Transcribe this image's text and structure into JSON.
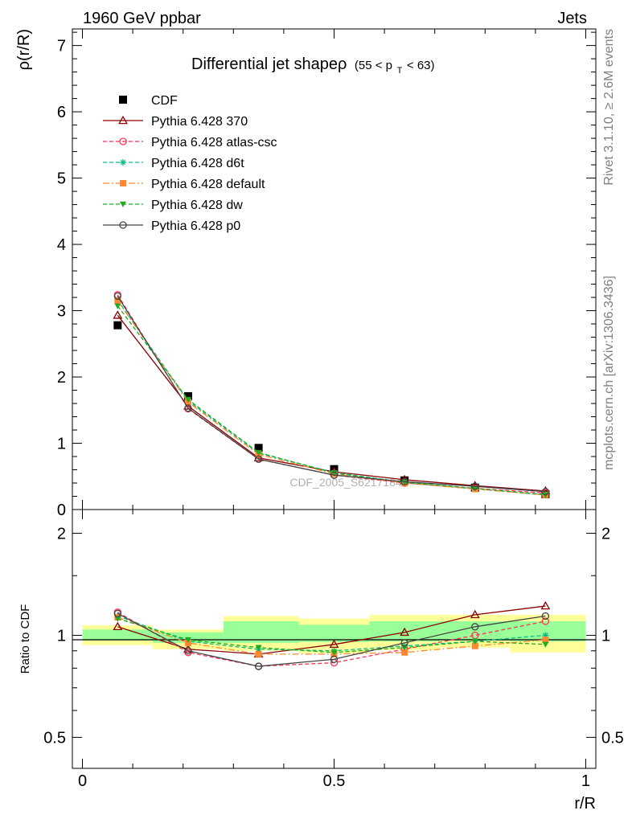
{
  "header": {
    "left": "1960 GeV ppbar",
    "right": "Jets"
  },
  "side_text": {
    "rivet": "Rivet 3.1.10, ≥ 2.6M events",
    "mcplots": "mcplots.cern.ch [arXiv:1306.3436]"
  },
  "watermark": "CDF_2005_S6217184",
  "chart_data": [
    {
      "type": "line",
      "title_main": "Differential jet shapeρ",
      "title_range": "(55 < p",
      "title_sub": "T",
      "title_tail": " < 63)",
      "ylabel": "ρ(r/R)",
      "xlabel": "r/R",
      "ylim": [
        0,
        7.25
      ],
      "xlim": [
        -0.02,
        1.02
      ],
      "yticks": [
        "0",
        "1",
        "2",
        "3",
        "4",
        "5",
        "6",
        "7"
      ],
      "x": [
        0.07,
        0.21,
        0.35,
        0.5,
        0.64,
        0.78,
        0.92
      ],
      "series": [
        {
          "name": "CDF",
          "color": "#000000",
          "style": "solid",
          "marker": "square-filled",
          "line": false,
          "values": [
            2.78,
            1.71,
            0.93,
            0.61,
            0.44,
            0.33,
            0.23
          ]
        },
        {
          "name": "Pythia 6.428 370",
          "color": "#8b0000",
          "style": "solid",
          "marker": "triangle-open",
          "values": [
            2.93,
            1.56,
            0.78,
            0.57,
            0.45,
            0.36,
            0.28
          ]
        },
        {
          "name": "Pythia 6.428 atlas-csc",
          "color": "#ff3355",
          "style": "dashed",
          "marker": "circle-open",
          "values": [
            3.24,
            1.52,
            0.76,
            0.52,
            0.4,
            0.32,
            0.25
          ]
        },
        {
          "name": "Pythia 6.428 d6t",
          "color": "#11bb88",
          "style": "dashed",
          "marker": "star",
          "values": [
            3.16,
            1.64,
            0.85,
            0.56,
            0.41,
            0.31,
            0.23
          ]
        },
        {
          "name": "Pythia 6.428 default",
          "color": "#ff8833",
          "style": "dashdot",
          "marker": "square-filled",
          "values": [
            3.15,
            1.62,
            0.83,
            0.54,
            0.4,
            0.31,
            0.22
          ]
        },
        {
          "name": "Pythia 6.428 dw",
          "color": "#22aa22",
          "style": "dashed",
          "marker": "triangle-down-filled",
          "values": [
            3.07,
            1.66,
            0.86,
            0.55,
            0.41,
            0.32,
            0.22
          ]
        },
        {
          "name": "Pythia 6.428 p0",
          "color": "#444444",
          "style": "solid",
          "marker": "circle-open",
          "values": [
            3.22,
            1.53,
            0.76,
            0.52,
            0.42,
            0.35,
            0.27
          ]
        }
      ]
    },
    {
      "type": "line",
      "ylabel": "Ratio to CDF",
      "xlabel": "r/R",
      "scale": "log",
      "ylim": [
        0.405,
        2.35
      ],
      "xlim": [
        -0.02,
        1.02
      ],
      "yticks": [
        0.5,
        1,
        2
      ],
      "ytick_labels": [
        "0.5",
        "1",
        "2"
      ],
      "xticks": [
        0,
        0.5,
        1
      ],
      "xtick_labels": [
        "0",
        "0.5",
        "1"
      ],
      "x": [
        0.07,
        0.21,
        0.35,
        0.5,
        0.64,
        0.78,
        0.92
      ],
      "bins": [
        [
          0.0,
          0.14
        ],
        [
          0.14,
          0.28
        ],
        [
          0.28,
          0.43
        ],
        [
          0.43,
          0.57
        ],
        [
          0.57,
          0.71
        ],
        [
          0.71,
          0.85
        ],
        [
          0.85,
          1.0
        ]
      ],
      "band_yellow": [
        [
          0.935,
          1.07
        ],
        [
          0.91,
          1.04
        ],
        [
          0.9,
          1.14
        ],
        [
          0.885,
          1.12
        ],
        [
          0.905,
          1.15
        ],
        [
          0.92,
          1.15
        ],
        [
          0.89,
          1.15
        ]
      ],
      "band_green": [
        [
          0.965,
          1.04
        ],
        [
          0.95,
          1.02
        ],
        [
          0.95,
          1.1
        ],
        [
          0.955,
          1.075
        ],
        [
          0.96,
          1.1
        ],
        [
          0.965,
          1.1
        ],
        [
          0.96,
          1.1
        ]
      ],
      "series": [
        {
          "name": "Pythia 6.428 370",
          "color": "#8b0000",
          "style": "solid",
          "marker": "triangle-open",
          "values": [
            1.06,
            0.91,
            0.88,
            0.94,
            1.02,
            1.15,
            1.22
          ]
        },
        {
          "name": "Pythia 6.428 atlas-csc",
          "color": "#ff3355",
          "style": "dashed",
          "marker": "circle-open",
          "values": [
            1.17,
            0.89,
            0.81,
            0.83,
            0.91,
            1.0,
            1.1
          ]
        },
        {
          "name": "Pythia 6.428 d6t",
          "color": "#11bb88",
          "style": "dashed",
          "marker": "star",
          "values": [
            1.14,
            0.96,
            0.91,
            0.9,
            0.93,
            0.96,
            1.0
          ]
        },
        {
          "name": "Pythia 6.428 default",
          "color": "#ff8833",
          "style": "dashdot",
          "marker": "square-filled",
          "values": [
            1.13,
            0.95,
            0.88,
            0.88,
            0.89,
            0.93,
            0.97
          ]
        },
        {
          "name": "Pythia 6.428 dw",
          "color": "#22aa22",
          "style": "dashed",
          "marker": "triangle-down-filled",
          "values": [
            1.12,
            0.97,
            0.92,
            0.89,
            0.92,
            0.96,
            0.94
          ]
        },
        {
          "name": "Pythia 6.428 p0",
          "color": "#444444",
          "style": "solid",
          "marker": "circle-open",
          "values": [
            1.16,
            0.9,
            0.81,
            0.85,
            0.95,
            1.06,
            1.14
          ]
        }
      ]
    }
  ]
}
